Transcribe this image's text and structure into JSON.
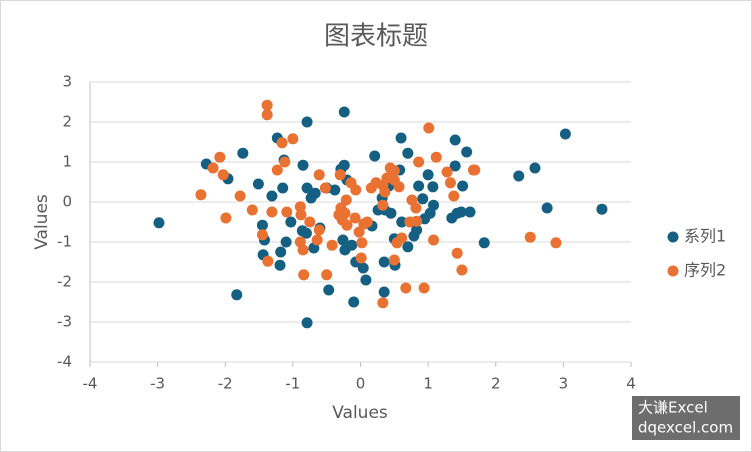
{
  "chart_data": {
    "type": "scatter",
    "title": "图表标题",
    "x_label": "Values",
    "y_label": "Values",
    "xlim": [
      -4,
      4
    ],
    "ylim": [
      -4,
      3
    ],
    "xticks": [
      -4,
      -3,
      -2,
      -1,
      0,
      1,
      2,
      3,
      4
    ],
    "yticks": [
      -4,
      -3,
      -2,
      -1,
      0,
      1,
      2,
      3
    ],
    "grid": true,
    "legend": "right",
    "series": [
      {
        "name": "系列1",
        "color": "#156082",
        "x": [
          -2.98,
          -2.28,
          -1.74,
          -1.83,
          -1.96,
          -1.23,
          -0.79,
          -0.24,
          -0.79,
          -0.47,
          -0.1,
          0.35,
          0.6,
          0.7,
          1.4,
          1.57,
          1.51,
          1.83,
          2.34,
          2.58,
          2.76,
          3.03,
          3.57,
          -1.45,
          -1.42,
          -1.44,
          -1.19,
          -1.18,
          -1.15,
          -1.1,
          -1.03,
          -0.85,
          -0.79,
          -0.8,
          -0.86,
          -0.73,
          -0.67,
          -0.6,
          -0.5,
          -0.38,
          -0.24,
          -0.29,
          -0.2,
          -0.26,
          -0.23,
          -0.13,
          -0.07,
          0.04,
          0.08,
          0.17,
          0.21,
          0.26,
          0.32,
          0.42,
          0.45,
          0.5,
          0.51,
          0.61,
          0.7,
          0.79,
          0.83,
          0.86,
          0.92,
          0.95,
          1.03,
          1.07,
          1.08,
          1.0,
          1.4,
          1.35,
          1.43,
          1.49,
          1.62,
          0.58,
          0.35,
          0.36,
          -0.69,
          -1.31,
          -1.13,
          -1.51
        ],
        "y": [
          -0.52,
          0.95,
          1.22,
          -2.32,
          0.58,
          1.6,
          2.0,
          2.25,
          -3.02,
          -2.2,
          -2.5,
          -2.25,
          1.6,
          1.22,
          1.55,
          1.25,
          0.4,
          -1.02,
          0.65,
          0.85,
          -0.15,
          1.7,
          -0.18,
          -0.58,
          -0.95,
          -1.32,
          -1.58,
          -1.25,
          0.35,
          -1.0,
          -0.5,
          0.92,
          0.35,
          -0.78,
          -0.72,
          0.1,
          0.22,
          -0.65,
          0.35,
          0.3,
          0.92,
          0.82,
          0.55,
          -0.95,
          -1.2,
          -1.08,
          -1.5,
          -1.65,
          -1.95,
          -0.6,
          1.15,
          -0.2,
          0.1,
          0.4,
          -0.28,
          -0.92,
          -1.58,
          -0.5,
          -1.12,
          -0.85,
          -0.7,
          0.4,
          0.08,
          -0.42,
          -0.28,
          0.38,
          -0.08,
          0.68,
          0.9,
          -0.4,
          -0.28,
          -0.25,
          -0.25,
          0.8,
          -1.5,
          -0.2,
          -1.15,
          0.15,
          1.05,
          0.45
        ]
      },
      {
        "name": "序列2",
        "color": "#E97132",
        "x": [
          -2.36,
          -2.08,
          -2.18,
          -2.03,
          -1.99,
          -1.78,
          -1.38,
          -1.38,
          -1.0,
          -1.16,
          -1.12,
          -1.23,
          -1.31,
          -1.45,
          -1.37,
          -1.6,
          -0.89,
          -0.85,
          -0.84,
          -0.5,
          -0.64,
          -0.61,
          -0.88,
          -0.89,
          -1.09,
          -0.61,
          -0.52,
          -0.32,
          -0.29,
          -0.27,
          -0.2,
          -0.23,
          -0.21,
          -0.3,
          -0.14,
          -0.07,
          -0.08,
          -0.02,
          0.02,
          0.05,
          0.1,
          0.16,
          0.23,
          0.33,
          0.36,
          0.33,
          0.39,
          0.44,
          0.5,
          0.5,
          0.5,
          0.54,
          0.61,
          0.57,
          0.76,
          0.82,
          0.83,
          0.73,
          0.86,
          0.67,
          0.94,
          0.33,
          1.01,
          1.08,
          1.12,
          1.28,
          1.38,
          1.33,
          1.43,
          1.5,
          1.67,
          1.69,
          2.51,
          2.89,
          0.01,
          -0.42,
          -0.75
        ],
        "y": [
          0.18,
          1.12,
          0.85,
          0.68,
          -0.4,
          0.15,
          2.42,
          2.18,
          1.58,
          1.48,
          1.0,
          0.8,
          -0.25,
          -0.82,
          -1.48,
          -0.2,
          -1.0,
          -1.2,
          -1.82,
          -1.82,
          -0.95,
          -0.7,
          -0.32,
          -0.12,
          -0.25,
          0.68,
          0.35,
          -0.32,
          -0.15,
          -0.45,
          -0.58,
          -0.28,
          0.05,
          0.68,
          0.48,
          0.3,
          -0.4,
          -0.75,
          -1.02,
          -0.55,
          -0.5,
          0.35,
          0.48,
          0.42,
          0.25,
          -0.08,
          0.6,
          0.85,
          0.78,
          0.55,
          -1.45,
          -1.02,
          -0.9,
          0.38,
          0.05,
          -0.15,
          -0.48,
          -0.5,
          1.0,
          -2.15,
          -2.15,
          -2.52,
          1.85,
          -0.95,
          1.12,
          0.75,
          0.15,
          0.48,
          -1.28,
          -1.7,
          0.8,
          0.8,
          -0.88,
          -1.02,
          -1.4,
          -1.08,
          -0.5
        ]
      }
    ]
  },
  "watermark": [
    "大谦Excel",
    "dqexcel.com"
  ]
}
